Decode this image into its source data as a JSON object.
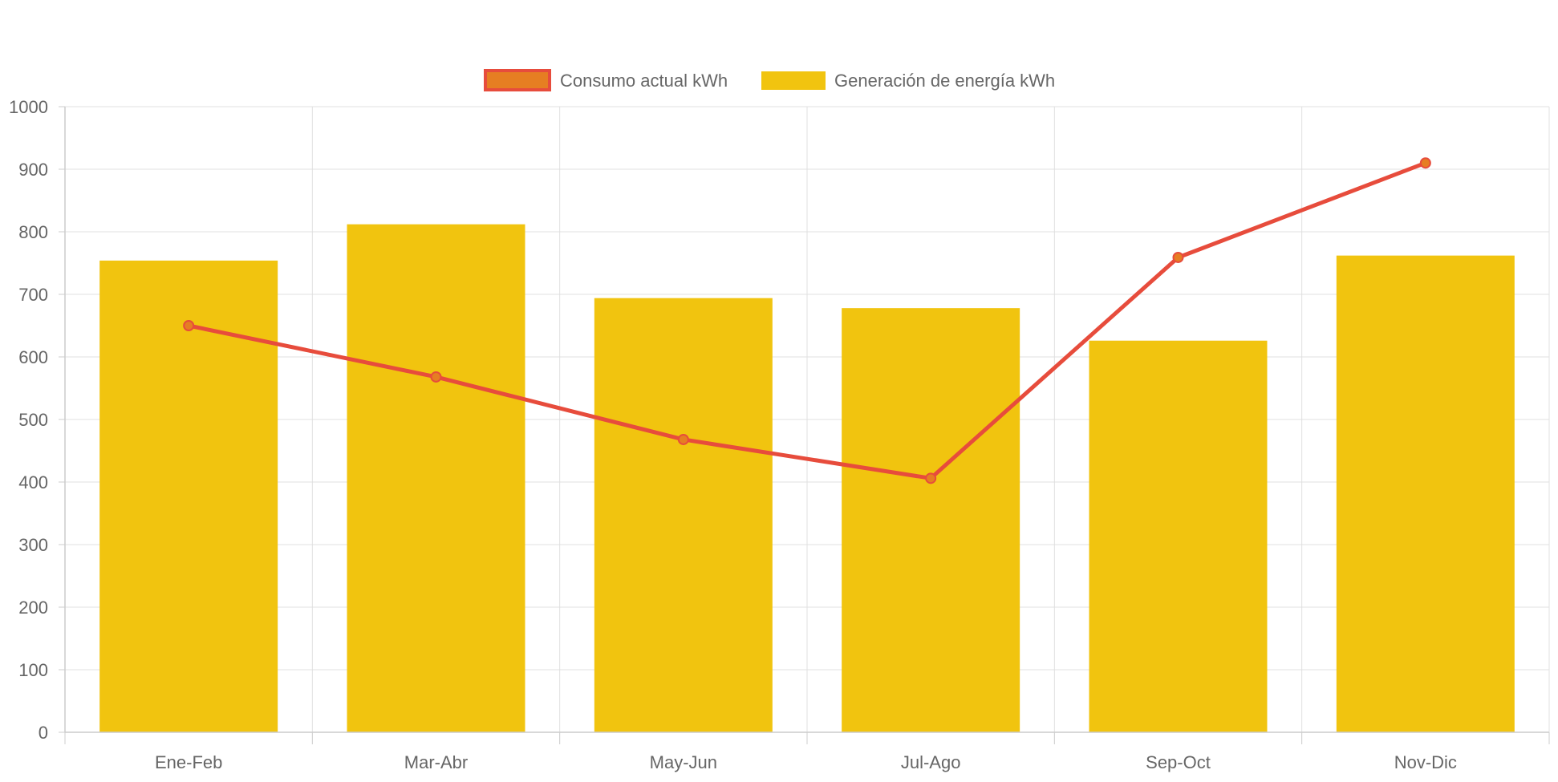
{
  "chart_data": {
    "type": "bar",
    "categories": [
      "Ene-Feb",
      "Mar-Abr",
      "May-Jun",
      "Jul-Ago",
      "Sep-Oct",
      "Nov-Dic"
    ],
    "series": [
      {
        "name": "Consumo actual kWh",
        "type": "line",
        "values": [
          650,
          568,
          468,
          406,
          759,
          910
        ],
        "color": "#e74c3c",
        "point_fill": "#e67e22"
      },
      {
        "name": "Generación de energía kWh",
        "type": "bar",
        "values": [
          754,
          812,
          694,
          678,
          626,
          762
        ],
        "color": "#f1c40f"
      }
    ],
    "y_ticks": [
      "0",
      "100",
      "200",
      "300",
      "400",
      "500",
      "600",
      "700",
      "800",
      "900",
      "1000"
    ],
    "ylim": [
      0,
      1000
    ],
    "grid": true,
    "legend_position": "top"
  }
}
